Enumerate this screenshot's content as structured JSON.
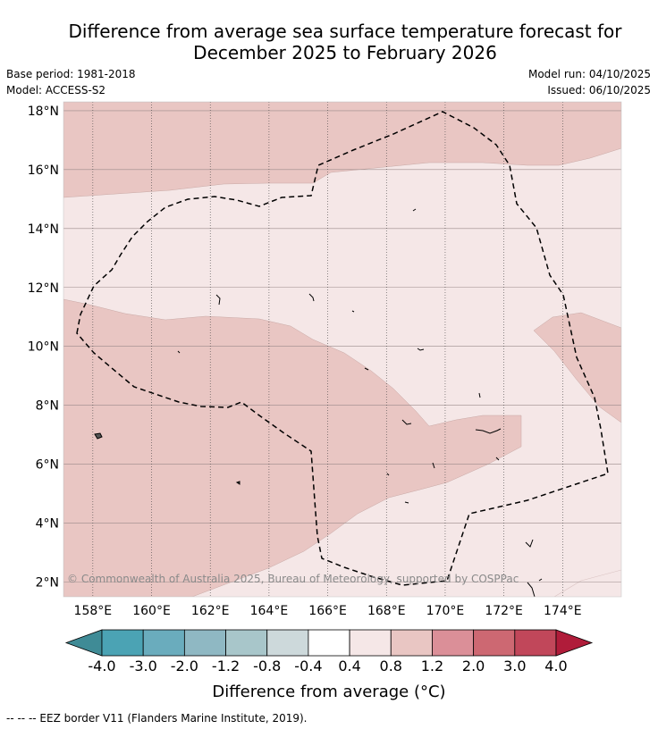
{
  "title_line1": "Difference from average sea surface temperature forecast for",
  "title_line2": "December 2025 to February 2026",
  "base_period": "Base period: 1981-2018",
  "model": "Model: ACCESS-S2",
  "model_run": "Model run: 04/10/2025",
  "issued": "Issued: 06/10/2025",
  "lat_labels": [
    "18°N",
    "16°N",
    "14°N",
    "12°N",
    "10°N",
    "8°N",
    "6°N",
    "4°N",
    "2°N"
  ],
  "lon_labels": [
    "158°E",
    "160°E",
    "162°E",
    "164°E",
    "166°E",
    "168°E",
    "170°E",
    "172°E",
    "174°E"
  ],
  "copyright": "© Commonwealth of Australia 2025, Bureau of Meteorology, supported by COSPPac",
  "colorbar": {
    "tick_labels": [
      "-4.0",
      "-3.0",
      "-2.0",
      "-1.2",
      "-0.8",
      "-0.4",
      "0.4",
      "0.8",
      "1.2",
      "2.0",
      "3.0",
      "4.0"
    ],
    "colors": [
      "#3f8b96",
      "#4ba3b4",
      "#6aacbd",
      "#8fb8c3",
      "#a8c6ca",
      "#cdd9db",
      "#ffffff",
      "#f5e7e7",
      "#e9c6c3",
      "#db8f98",
      "#cd6872",
      "#c1475a",
      "#b01c3a"
    ],
    "label": "Difference from average (°C)"
  },
  "legend_note": "--  --  -- EEZ border V11 (Flanders Marine Institute, 2019).",
  "chart_data": {
    "type": "map",
    "extent": {
      "lon": [
        157.0,
        176.0
      ],
      "lat": [
        1.5,
        18.3
      ]
    },
    "lat_ticks": [
      18,
      16,
      14,
      12,
      10,
      8,
      6,
      4,
      2
    ],
    "lon_ticks": [
      158,
      160,
      162,
      164,
      166,
      168,
      170,
      172,
      174
    ],
    "regions": [
      {
        "category": "0.8 to 1.2",
        "color": "#e9c6c3",
        "area": "north (above ~15°N, west to ~17°N east)"
      },
      {
        "category": "0.4 to 0.8",
        "color": "#f5e7e7",
        "area": "central band ~10–15°N"
      },
      {
        "category": "0.8 to 1.2",
        "color": "#e9c6c3",
        "area": "southwest ~2–10°N"
      },
      {
        "category": "0.8 to 1.2",
        "color": "#e9c6c3",
        "area": "east lobe ~7.5–10.5°N, 172–176°E"
      }
    ],
    "eez_border": "Marshall Islands EEZ (dashed)"
  }
}
